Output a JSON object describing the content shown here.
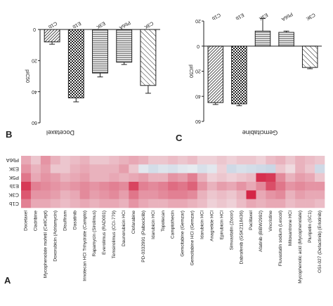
{
  "figure": {
    "panel_a": "A",
    "panel_b": "B",
    "panel_c": "C"
  },
  "chart_data": [
    {
      "type": "bar",
      "panel": "B",
      "title": "Docetaxel",
      "ylabel": "pIC50",
      "categories": [
        "C1b",
        "E1b",
        "E3K",
        "Pb6A",
        "C3K"
      ],
      "values": [
        -8,
        -44,
        -28,
        -21,
        -36
      ],
      "errors": [
        1.5,
        2.5,
        2.5,
        1.5,
        5
      ],
      "ylim": [
        -60,
        0
      ],
      "yticks": [
        0,
        -20,
        -40,
        -60
      ],
      "ytick_labels": [
        "0",
        "20",
        "40",
        "60"
      ],
      "fills": [
        "hatch-dense",
        "checker",
        "hlines",
        "hlines",
        "diagonal"
      ]
    },
    {
      "type": "bar",
      "panel": "C",
      "title": "Gemcitabine",
      "ylabel": "pIC50",
      "categories": [
        "C1b",
        "E1b",
        "E3K",
        "Pb6A",
        "C3K"
      ],
      "values": [
        -45,
        -46,
        12,
        11,
        -17
      ],
      "errors": [
        1.5,
        1.5,
        10,
        1,
        1
      ],
      "ylim": [
        -60,
        20
      ],
      "yticks": [
        20,
        0,
        -20,
        -40,
        -60
      ],
      "ytick_labels": [
        "20",
        "0",
        "20",
        "40",
        "60"
      ],
      "fills": [
        "hatch-dense",
        "checker",
        "hlines",
        "hlines",
        "diagonal"
      ]
    },
    {
      "type": "heatmap",
      "panel": "A",
      "rows": [
        "Pb6A",
        "E3K",
        "P5K",
        "E1b",
        "C3K",
        "C1b"
      ],
      "columns": [
        "Docetaxel",
        "Cladribine",
        "Mycophenolate mofetil (CellCept)",
        "Doxorubicin (Adriamycin)",
        "Disulfiram",
        "Dasatinib",
        "Irinotecan HCl Trihydrate (Campto)",
        "Rapamycin (Sirolimus)",
        "Everolimus (RAD001)",
        "Temsirolimus (CCI-779)",
        "Daunorubicin HCl",
        "Clofarabine",
        "PD-0332991 (Palbociclib)",
        "Idarubicin HCl",
        "Topotecan",
        "Camptothecin",
        "Gemcitabine (Gemzar)",
        "Gemcitabine HCl (Gemzar)",
        "Idarubicin HCl",
        "Anagrelide HCl",
        "Epirubicin HCl",
        "Simvastatin (Zocor)",
        "Dabrafenib (GSK2118436)",
        "Paclitaxel",
        "Afatinib (BIBW2992)",
        "Vincristine",
        "Fluvastatin sodium (Lescol)",
        "Mitoxantrone HCl",
        "Mycophenolic acid (Mycophenolate)",
        "Pluripotin (SC1)",
        "OSI-027 (Defactinib) (Erlotinib)"
      ],
      "values": [
        [
          0.35,
          0.2,
          0.45,
          0.3,
          0.2,
          0.25,
          0.3,
          0.2,
          0.2,
          0.25,
          0.3,
          0.35,
          0.3,
          0.2,
          0.2,
          0.25,
          0.2,
          0.25,
          0.15,
          0.15,
          0.2,
          0.15,
          0.2,
          0.2,
          0.15,
          0.25,
          0.3,
          0.2,
          0.3,
          0.25,
          0.2
        ],
        [
          0.45,
          0.3,
          0.4,
          0.2,
          0.2,
          0.3,
          0.35,
          0.3,
          0.3,
          0.3,
          0.4,
          0.2,
          -0.1,
          -0.25,
          -0.15,
          -0.2,
          -0.1,
          -0.05,
          -0.2,
          -0.1,
          0.15,
          -0.3,
          -0.2,
          -0.25,
          -0.3,
          -0.35,
          0.2,
          0.1,
          0.3,
          0.2,
          -0.3
        ],
        [
          0.6,
          0.35,
          0.45,
          0.4,
          0.3,
          0.35,
          0.4,
          0.3,
          0.3,
          0.35,
          0.3,
          0.35,
          0.4,
          0.3,
          0.3,
          0.45,
          0.4,
          0.55,
          0.3,
          0.15,
          0.2,
          0.15,
          0.2,
          0.25,
          0.95,
          0.9,
          0.5,
          0.3,
          0.4,
          0.35,
          0.2
        ],
        [
          0.9,
          0.55,
          0.5,
          0.45,
          0.4,
          0.45,
          0.5,
          0.45,
          0.5,
          0.55,
          0.5,
          0.85,
          0.55,
          0.5,
          0.55,
          0.65,
          0.6,
          0.7,
          0.45,
          0.3,
          0.4,
          0.35,
          0.45,
          0.35,
          0.5,
          0.8,
          0.6,
          0.45,
          0.5,
          0.45,
          0.45
        ],
        [
          0.75,
          0.45,
          0.45,
          0.4,
          0.3,
          0.35,
          0.5,
          0.4,
          0.45,
          0.5,
          0.4,
          0.6,
          0.45,
          0.45,
          0.5,
          0.55,
          0.55,
          0.5,
          0.3,
          0.2,
          0.25,
          0.2,
          0.3,
          1.0,
          0.35,
          0.45,
          0.5,
          0.3,
          0.4,
          0.35,
          0.35
        ],
        [
          0.55,
          0.35,
          0.35,
          0.3,
          0.25,
          0.3,
          0.35,
          0.3,
          0.35,
          0.35,
          0.3,
          0.45,
          0.35,
          0.3,
          0.3,
          0.35,
          0.35,
          0.3,
          0.25,
          0.15,
          0.2,
          0.15,
          0.25,
          0.35,
          0.3,
          0.35,
          0.35,
          0.25,
          0.3,
          0.3,
          0.25
        ]
      ]
    }
  ]
}
